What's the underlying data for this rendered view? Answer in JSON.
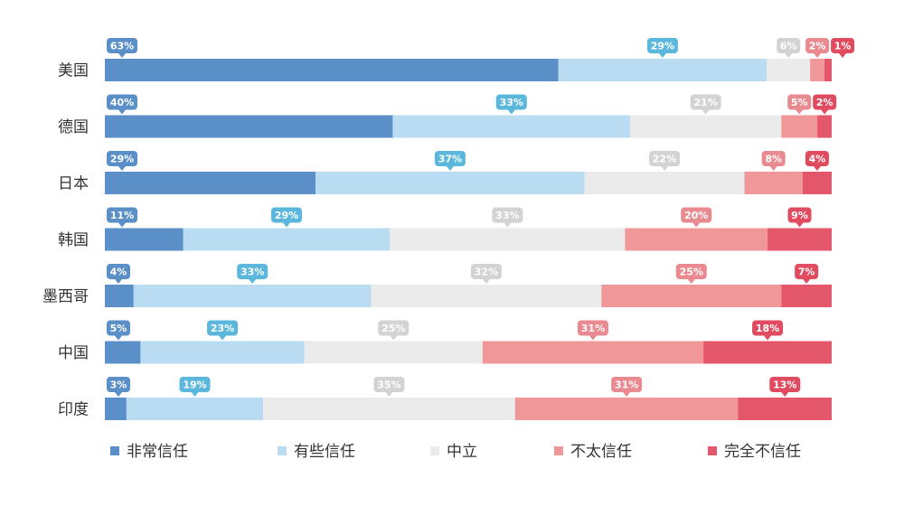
{
  "chart_data": {
    "type": "bar",
    "orientation": "horizontal",
    "stacked": true,
    "percent_stacked": true,
    "categories": [
      "美国",
      "德国",
      "日本",
      "韩国",
      "墨西哥",
      "中国",
      "印度"
    ],
    "series": [
      {
        "name": "非常信任",
        "color": "#5b8fc7",
        "bubble_color": "#5b8fc7",
        "values": [
          63,
          40,
          29,
          11,
          4,
          5,
          3
        ]
      },
      {
        "name": "有些信任",
        "color": "#b9dcf2",
        "bubble_color": "#5bb8dc",
        "values": [
          29,
          33,
          37,
          29,
          33,
          23,
          19
        ]
      },
      {
        "name": "中立",
        "color": "#ebebeb",
        "bubble_color": "#d3d3d3",
        "values": [
          6,
          21,
          22,
          33,
          32,
          25,
          35
        ]
      },
      {
        "name": "不太信任",
        "color": "#f0979a",
        "bubble_color": "#e88a90",
        "values": [
          2,
          5,
          8,
          20,
          25,
          31,
          31
        ]
      },
      {
        "name": "完全不信任",
        "color": "#e4566a",
        "bubble_color": "#e04b60",
        "values": [
          1,
          2,
          4,
          9,
          7,
          18,
          13
        ]
      }
    ],
    "data_label_suffix": "%",
    "legend_position": "bottom",
    "grid": false
  }
}
